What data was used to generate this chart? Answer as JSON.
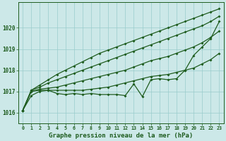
{
  "hours": [
    0,
    1,
    2,
    3,
    4,
    5,
    6,
    7,
    8,
    9,
    10,
    11,
    12,
    13,
    14,
    15,
    16,
    17,
    18,
    19,
    20,
    21,
    22,
    23
  ],
  "line_actual": [
    1016.1,
    1016.8,
    1017.0,
    1017.05,
    1016.9,
    1016.85,
    1016.9,
    1016.85,
    1016.9,
    1016.85,
    1016.85,
    1016.85,
    1016.8,
    1017.35,
    1016.75,
    1017.55,
    1017.6,
    1017.55,
    1017.6,
    1018.0,
    1018.7,
    1019.1,
    1019.5,
    1020.3
  ],
  "line_env1": [
    1016.1,
    1017.0,
    1017.05,
    1017.05,
    1017.05,
    1017.05,
    1017.05,
    1017.05,
    1017.1,
    1017.15,
    1017.2,
    1017.3,
    1017.4,
    1017.5,
    1017.6,
    1017.7,
    1017.75,
    1017.8,
    1017.9,
    1018.0,
    1018.1,
    1018.3,
    1018.5,
    1018.8
  ],
  "line_env2": [
    1016.1,
    1017.0,
    1017.1,
    1017.15,
    1017.2,
    1017.3,
    1017.4,
    1017.5,
    1017.6,
    1017.7,
    1017.8,
    1017.9,
    1018.0,
    1018.15,
    1018.3,
    1018.45,
    1018.55,
    1018.65,
    1018.8,
    1018.95,
    1019.1,
    1019.3,
    1019.55,
    1019.85
  ],
  "line_env3": [
    1016.1,
    1017.05,
    1017.2,
    1017.4,
    1017.55,
    1017.7,
    1017.85,
    1018.0,
    1018.15,
    1018.3,
    1018.45,
    1018.6,
    1018.75,
    1018.9,
    1019.05,
    1019.2,
    1019.35,
    1019.5,
    1019.65,
    1019.8,
    1019.95,
    1020.1,
    1020.3,
    1020.55
  ],
  "line_env4": [
    1016.1,
    1017.05,
    1017.3,
    1017.55,
    1017.8,
    1018.0,
    1018.2,
    1018.4,
    1018.6,
    1018.8,
    1018.95,
    1019.1,
    1019.25,
    1019.4,
    1019.55,
    1019.7,
    1019.85,
    1020.0,
    1020.15,
    1020.3,
    1020.45,
    1020.6,
    1020.75,
    1020.9
  ],
  "ylim": [
    1015.5,
    1021.2
  ],
  "yticks": [
    1016,
    1017,
    1018,
    1019,
    1020
  ],
  "bg_color": "#cce8e8",
  "line_color": "#1e5c1e",
  "grid_color": "#99cccc",
  "xlabel": "Graphe pression niveau de la mer (hPa)",
  "marker": "D",
  "markersize": 2.0,
  "linewidth": 0.9
}
